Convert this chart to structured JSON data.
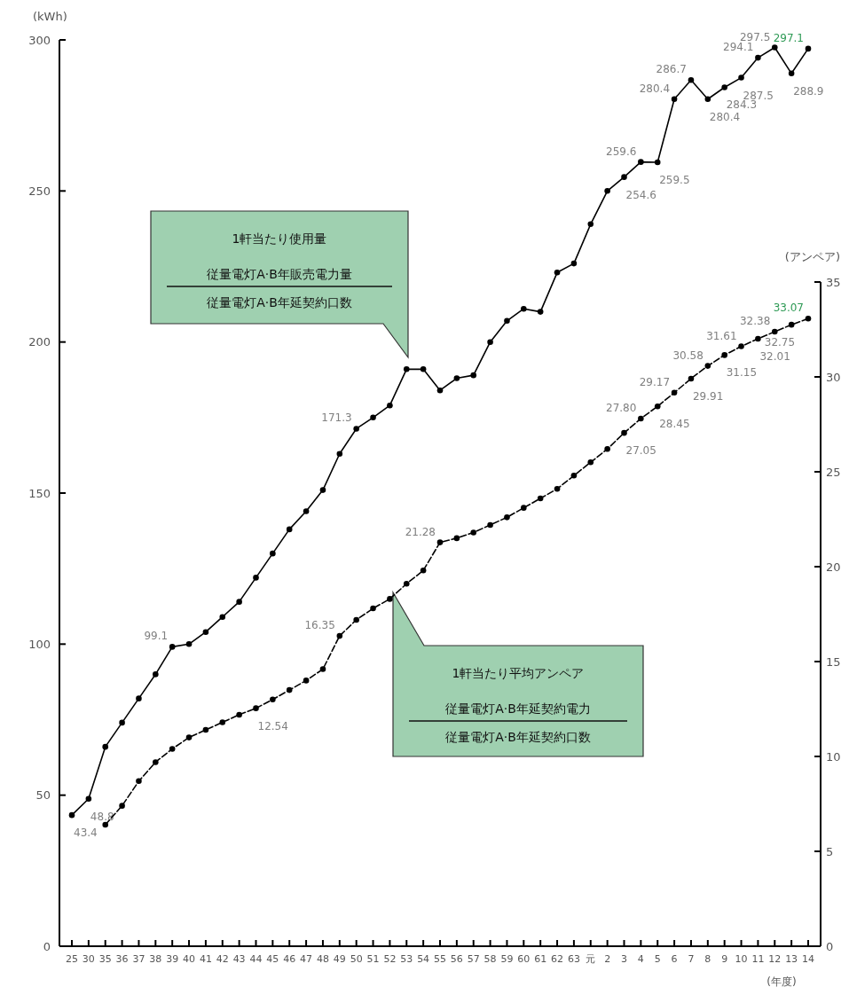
{
  "chart_data": {
    "type": "line",
    "ylabel": "(kWh)",
    "y2label": "(アンペア)",
    "xlabel": "(年度)",
    "categories": [
      "25",
      "30",
      "35",
      "36",
      "37",
      "38",
      "39",
      "40",
      "41",
      "42",
      "43",
      "44",
      "45",
      "46",
      "47",
      "48",
      "49",
      "50",
      "51",
      "52",
      "53",
      "54",
      "55",
      "56",
      "57",
      "58",
      "59",
      "60",
      "61",
      "62",
      "63",
      "元",
      "2",
      "3",
      "4",
      "5",
      "6",
      "7",
      "8",
      "9",
      "10",
      "11",
      "12",
      "13",
      "14"
    ],
    "ylim": [
      0,
      300
    ],
    "yticks": [
      0,
      50,
      100,
      150,
      200,
      250,
      300
    ],
    "y2lim": [
      0,
      35
    ],
    "y2ticks": [
      0,
      5,
      10,
      15,
      20,
      25,
      30,
      35
    ],
    "marker": "circle",
    "series": [
      {
        "color": "#000000",
        "line_style": "solid",
        "values": [
          43.4,
          48.8,
          66,
          74,
          82,
          90,
          99.1,
          100,
          104,
          109,
          114,
          122,
          130,
          138,
          144,
          151,
          163,
          171.3,
          175,
          179,
          191,
          191,
          184,
          188,
          189,
          200,
          207,
          211,
          210,
          223,
          226,
          239,
          250,
          254.6,
          259.6,
          259.5,
          280.4,
          286.7,
          280.4,
          284.3,
          287.5,
          294.1,
          297.5,
          288.9,
          297.1
        ],
        "value_labels": [
          "43.4",
          "48.8",
          null,
          null,
          null,
          null,
          "99.1",
          null,
          null,
          null,
          null,
          null,
          null,
          null,
          null,
          null,
          null,
          "171.3",
          null,
          null,
          null,
          null,
          null,
          null,
          null,
          null,
          null,
          null,
          null,
          null,
          null,
          null,
          null,
          "254.6",
          "259.6",
          "259.5",
          "280.4",
          "286.7",
          "280.4",
          "284.3",
          "287.5",
          "294.1",
          "297.5",
          "288.9",
          "297.1"
        ]
      },
      {
        "color": "#000000",
        "line_style": "dashed",
        "axis": "y2",
        "values": [
          null,
          null,
          6.4,
          7.4,
          8.7,
          9.7,
          10.4,
          11.0,
          11.4,
          11.8,
          12.2,
          12.54,
          13.0,
          13.5,
          14.0,
          14.6,
          16.35,
          17.2,
          17.8,
          18.3,
          19.1,
          19.8,
          21.28,
          21.5,
          21.8,
          22.2,
          22.6,
          23.1,
          23.6,
          24.1,
          24.8,
          25.5,
          26.2,
          27.05,
          27.8,
          28.45,
          29.17,
          29.91,
          30.58,
          31.15,
          31.61,
          32.01,
          32.38,
          32.75,
          33.07
        ],
        "value_labels": [
          null,
          null,
          null,
          null,
          null,
          null,
          null,
          null,
          null,
          null,
          null,
          "12.54",
          null,
          null,
          null,
          null,
          "16.35",
          null,
          null,
          null,
          null,
          null,
          "21.28",
          null,
          null,
          null,
          null,
          null,
          null,
          null,
          null,
          null,
          null,
          "27.05",
          "27.80",
          "28.45",
          "29.17",
          "29.91",
          "30.58",
          "31.15",
          "31.61",
          "32.01",
          "32.38",
          "32.75",
          "33.07"
        ]
      }
    ],
    "annotations": [
      "1軒当たり使用量",
      "従量電灯A·B年販売電力量",
      "従量電灯A·B年延契約口数",
      "1軒当たり平均アンペア",
      "従量電灯A·B年延契約電力",
      "従量電灯A·B年延契約口数"
    ]
  }
}
